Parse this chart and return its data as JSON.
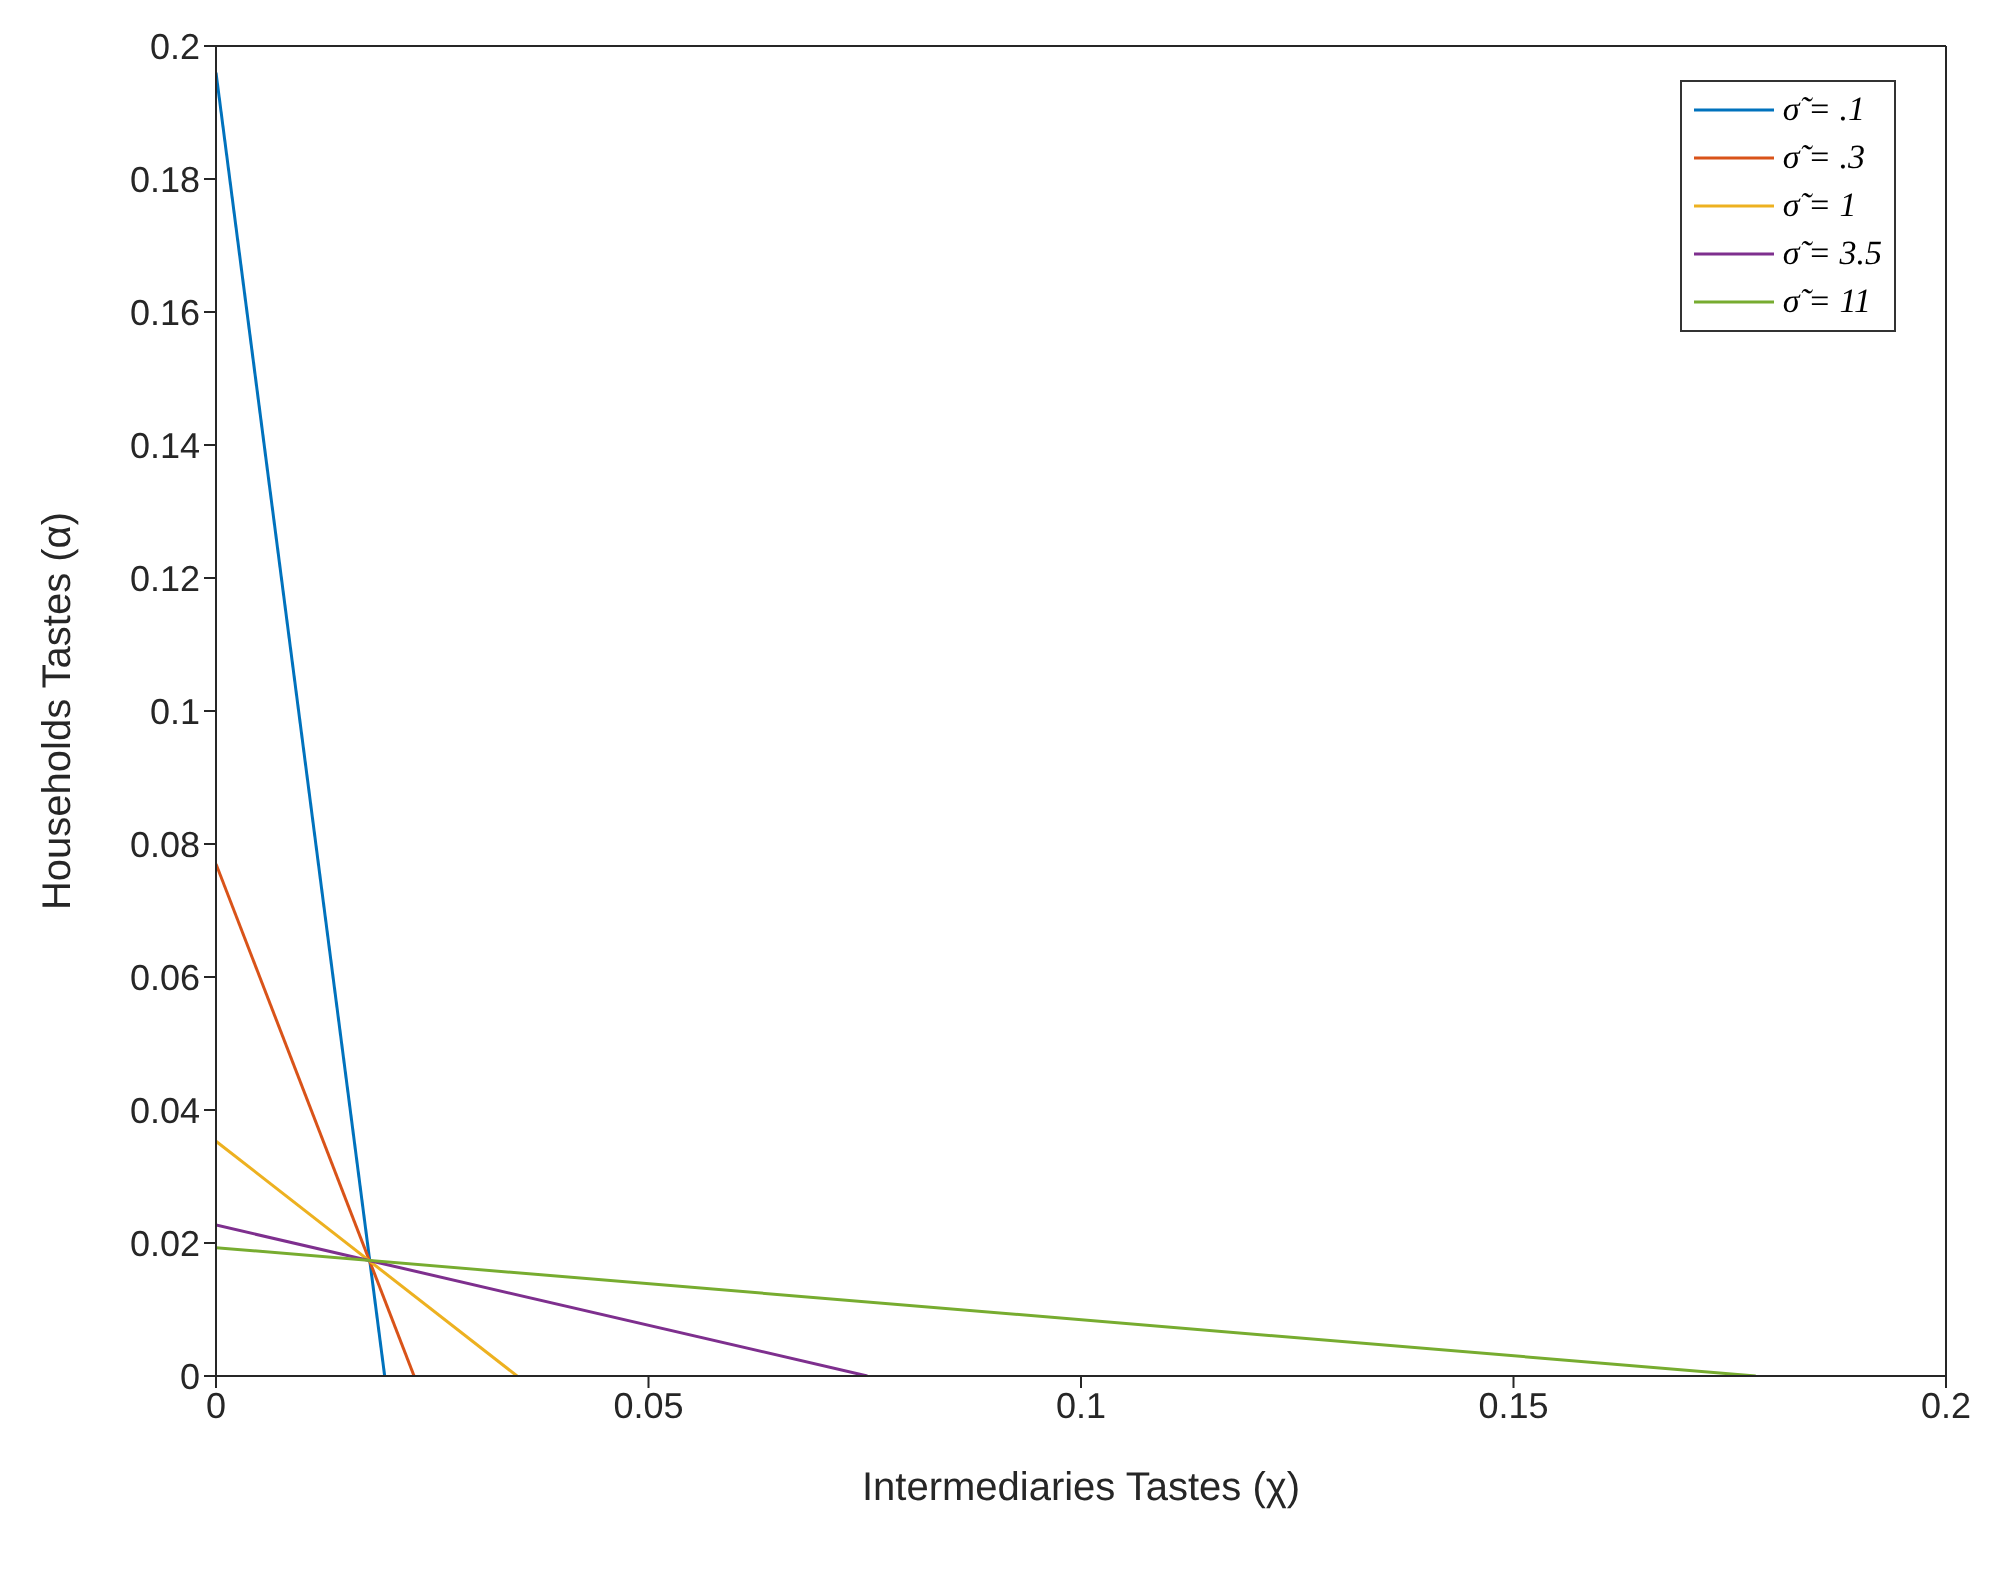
{
  "chart_data": {
    "type": "line",
    "xlabel": "Intermediaries Tastes (χ)",
    "ylabel": "Households Tastes (α)",
    "xlim": [
      0,
      0.2
    ],
    "ylim": [
      0,
      0.2
    ],
    "xticks": [
      0,
      0.05,
      0.1,
      0.15,
      0.2
    ],
    "yticks": [
      0,
      0.02,
      0.04,
      0.06,
      0.08,
      0.1,
      0.12,
      0.14,
      0.16,
      0.18,
      0.2
    ],
    "grid": false,
    "legend": "top right",
    "marker": "none",
    "line_style": "solid",
    "series": [
      {
        "name": "σ̃ = .1",
        "color": "#0072bd",
        "x": [
          0,
          0.0195
        ],
        "values": [
          0.196,
          0
        ]
      },
      {
        "name": "σ̃ = .3",
        "color": "#d95319",
        "x": [
          0,
          0.0229
        ],
        "values": [
          0.077,
          0
        ]
      },
      {
        "name": "σ̃ = 1",
        "color": "#edb120",
        "x": [
          0,
          0.0348
        ],
        "values": [
          0.0353,
          0
        ]
      },
      {
        "name": "σ̃ = 3.5",
        "color": "#7e2f8e",
        "x": [
          0,
          0.0753
        ],
        "values": [
          0.0227,
          0
        ]
      },
      {
        "name": "σ̃ = 11",
        "color": "#77ac30",
        "x": [
          0,
          0.178
        ],
        "values": [
          0.0193,
          0
        ]
      }
    ]
  }
}
